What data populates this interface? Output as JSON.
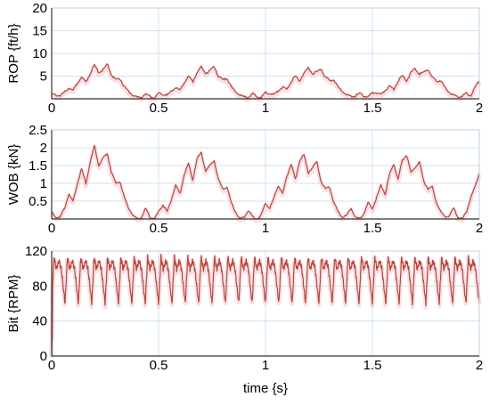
{
  "chart_data": [
    {
      "type": "line",
      "ylabel": "ROP {ft/h}",
      "xlim": [
        0,
        2
      ],
      "ylim": [
        0,
        20
      ],
      "xticks": [
        "0",
        "0.5",
        "1",
        "1.5",
        "2"
      ],
      "yticks": [
        "5",
        "10",
        "15",
        "20"
      ],
      "grid": true,
      "series_color": "#b5473a",
      "band_color": "#f6c6cf",
      "series": [
        {
          "x": [
            0,
            0.02,
            0.04,
            0.06,
            0.08,
            0.1,
            0.12,
            0.14,
            0.16,
            0.18,
            0.2,
            0.22,
            0.24,
            0.26,
            0.28,
            0.3,
            0.32,
            0.34,
            0.36,
            0.38,
            0.4,
            0.42,
            0.44,
            0.46,
            0.48,
            0.5,
            0.52,
            0.54,
            0.56,
            0.58,
            0.6,
            0.62,
            0.64,
            0.66,
            0.68,
            0.7,
            0.72,
            0.74,
            0.76,
            0.78,
            0.8,
            0.82,
            0.84,
            0.86,
            0.88,
            0.9,
            0.92,
            0.94,
            0.96,
            0.98,
            1.0,
            1.02,
            1.04,
            1.06,
            1.08,
            1.1,
            1.12,
            1.14,
            1.16,
            1.18,
            1.2,
            1.22,
            1.24,
            1.26,
            1.28,
            1.3,
            1.32,
            1.34,
            1.36,
            1.38,
            1.4,
            1.42,
            1.44,
            1.46,
            1.48,
            1.5,
            1.52,
            1.54,
            1.56,
            1.58,
            1.6,
            1.62,
            1.64,
            1.66,
            1.68,
            1.7,
            1.72,
            1.74,
            1.76,
            1.78,
            1.8,
            1.82,
            1.84,
            1.86,
            1.88,
            1.9,
            1.92,
            1.94,
            1.96,
            1.98,
            2.0
          ],
          "y": [
            1.0,
            0.8,
            0.7,
            1.5,
            2.5,
            1.8,
            3.5,
            4.8,
            3.6,
            5.6,
            7.4,
            5.8,
            6.4,
            7.6,
            5.2,
            4.2,
            4.4,
            2.6,
            1.6,
            0.8,
            0.3,
            0.4,
            1.1,
            0.5,
            0.2,
            1.2,
            1.0,
            0.8,
            1.6,
            2.5,
            1.8,
            3.6,
            4.9,
            3.8,
            5.8,
            7.0,
            5.6,
            6.2,
            7.1,
            5.0,
            4.2,
            4.5,
            2.6,
            1.6,
            0.8,
            0.4,
            0.3,
            1.2,
            0.5,
            0.3,
            1.4,
            1.2,
            0.9,
            1.8,
            2.7,
            2.0,
            3.8,
            5.0,
            3.9,
            5.7,
            6.8,
            5.5,
            6.0,
            6.6,
            4.8,
            4.0,
            4.2,
            2.5,
            1.6,
            0.9,
            0.5,
            0.6,
            1.2,
            0.6,
            0.4,
            1.4,
            1.3,
            1.0,
            1.9,
            2.8,
            2.1,
            3.9,
            5.1,
            4.0,
            5.7,
            6.7,
            5.4,
            5.9,
            6.5,
            4.7,
            3.9,
            4.0,
            2.4,
            1.5,
            0.8,
            0.5,
            0.6,
            1.2,
            0.6,
            2.5,
            4.0
          ]
        }
      ]
    },
    {
      "type": "line",
      "ylabel": "WOB {kN}",
      "xlim": [
        0,
        2
      ],
      "ylim": [
        0,
        2.5
      ],
      "xticks": [
        "0",
        "0.5",
        "1",
        "1.5",
        "2"
      ],
      "yticks": [
        "0.5",
        "1",
        "1.5",
        "2",
        "2.5"
      ],
      "grid": true,
      "series_color": "#b5473a",
      "band_color": "#f6c6cf",
      "series": [
        {
          "x": [
            0,
            0.02,
            0.04,
            0.06,
            0.08,
            0.1,
            0.12,
            0.14,
            0.16,
            0.18,
            0.2,
            0.22,
            0.24,
            0.26,
            0.28,
            0.3,
            0.32,
            0.34,
            0.36,
            0.38,
            0.4,
            0.42,
            0.44,
            0.46,
            0.48,
            0.5,
            0.52,
            0.54,
            0.56,
            0.58,
            0.6,
            0.62,
            0.64,
            0.66,
            0.68,
            0.7,
            0.72,
            0.74,
            0.76,
            0.78,
            0.8,
            0.82,
            0.84,
            0.86,
            0.88,
            0.9,
            0.92,
            0.94,
            0.96,
            0.98,
            1.0,
            1.02,
            1.04,
            1.06,
            1.08,
            1.1,
            1.12,
            1.14,
            1.16,
            1.18,
            1.2,
            1.22,
            1.24,
            1.26,
            1.28,
            1.3,
            1.32,
            1.34,
            1.36,
            1.38,
            1.4,
            1.42,
            1.44,
            1.46,
            1.48,
            1.5,
            1.52,
            1.54,
            1.56,
            1.58,
            1.6,
            1.62,
            1.64,
            1.66,
            1.68,
            1.7,
            1.72,
            1.74,
            1.76,
            1.78,
            1.8,
            1.82,
            1.84,
            1.86,
            1.88,
            1.9,
            1.92,
            1.94,
            1.96,
            1.98,
            2.0
          ],
          "y": [
            0.2,
            0.05,
            0.05,
            0.3,
            0.7,
            0.5,
            1.0,
            1.4,
            1.0,
            1.6,
            2.05,
            1.5,
            1.7,
            1.85,
            1.3,
            1.0,
            1.05,
            0.6,
            0.3,
            0.1,
            0.0,
            0.05,
            0.3,
            0.05,
            0.0,
            0.2,
            0.4,
            0.2,
            0.55,
            0.95,
            0.7,
            1.25,
            1.55,
            1.1,
            1.7,
            1.85,
            1.35,
            1.5,
            1.65,
            1.1,
            0.85,
            0.9,
            0.45,
            0.2,
            0.0,
            0.05,
            0.25,
            0.05,
            0.0,
            0.1,
            0.45,
            0.3,
            0.6,
            0.95,
            0.7,
            1.2,
            1.55,
            1.1,
            1.65,
            1.8,
            1.3,
            1.45,
            1.6,
            1.05,
            0.85,
            0.9,
            0.45,
            0.2,
            0.05,
            0.1,
            0.3,
            0.05,
            0.0,
            0.15,
            0.45,
            0.3,
            0.6,
            0.95,
            0.7,
            1.25,
            1.55,
            1.1,
            1.65,
            1.8,
            1.3,
            1.45,
            1.6,
            1.05,
            0.85,
            0.9,
            0.45,
            0.2,
            0.05,
            0.1,
            0.3,
            0.05,
            0.0,
            0.2,
            0.6,
            0.9,
            1.3
          ]
        }
      ]
    },
    {
      "type": "line",
      "ylabel": "Bit {RPM}",
      "xlabel": "time {s}",
      "xlim": [
        0,
        2
      ],
      "ylim": [
        0,
        120
      ],
      "xticks": [
        "0",
        "0.5",
        "1",
        "1.5",
        "2"
      ],
      "yticks": [
        "0",
        "40",
        "80",
        "120"
      ],
      "grid": true,
      "series_color": "#b5473a",
      "band_color": "#f6c6cf",
      "oscillation_period_s": 0.0625,
      "rpm_peak": 113,
      "rpm_trough": 60,
      "rpm_mean": 90,
      "series": [
        {
          "x": [
            0,
            0.005,
            0.015,
            0.03,
            0.045,
            0.06,
            0.0625
          ],
          "y": [
            0,
            60,
            112,
            97,
            106,
            62,
            112
          ]
        }
      ]
    }
  ]
}
